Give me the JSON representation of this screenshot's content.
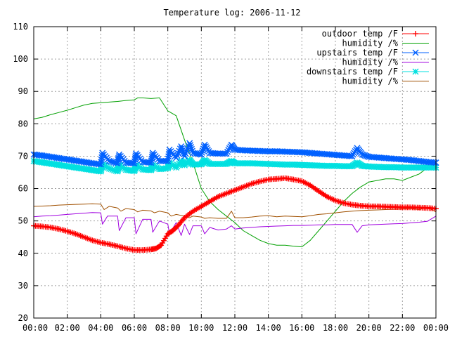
{
  "chart_data": {
    "type": "line",
    "title": "Temperature log: 2006-11-12",
    "xlabel": "",
    "ylabel": "",
    "xlim": [
      0,
      24
    ],
    "ylim": [
      20,
      110
    ],
    "grid": true,
    "legend_position": "top-right",
    "x_ticks": [
      "00:00",
      "02:00",
      "04:00",
      "06:00",
      "08:00",
      "10:00",
      "12:00",
      "14:00",
      "16:00",
      "18:00",
      "20:00",
      "22:00",
      "00:00"
    ],
    "y_ticks": [
      "20",
      "30",
      "40",
      "50",
      "60",
      "70",
      "80",
      "90",
      "100",
      "110"
    ],
    "series": [
      {
        "name": "outdoor temp /F",
        "color": "#ff0000",
        "marker": "plus",
        "x": [
          0,
          0.5,
          1,
          1.5,
          2,
          2.5,
          3,
          3.5,
          4,
          4.5,
          5,
          5.5,
          6,
          6.5,
          7,
          7.3,
          7.6,
          8,
          8.3,
          8.6,
          9,
          9.5,
          10,
          10.5,
          11,
          11.5,
          12,
          12.5,
          13,
          13.5,
          14,
          14.5,
          15,
          15.5,
          16,
          16.5,
          17,
          17.5,
          18,
          18.5,
          19,
          19.5,
          20,
          20.5,
          21,
          21.5,
          22,
          22.5,
          23,
          23.5,
          24
        ],
        "y": [
          48.5,
          48.3,
          48,
          47.5,
          46.8,
          46,
          45,
          44,
          43.3,
          42.8,
          42.2,
          41.5,
          41,
          41,
          41.2,
          41.5,
          42.5,
          46,
          47,
          48.5,
          51,
          53,
          54.5,
          56,
          57.5,
          58.5,
          59.5,
          60.5,
          61.5,
          62.2,
          62.8,
          63,
          63.2,
          62.8,
          62.3,
          61,
          59.2,
          57.5,
          56.3,
          55.5,
          55,
          54.7,
          54.5,
          54.5,
          54.4,
          54.3,
          54.2,
          54.2,
          54.1,
          54,
          53.8
        ]
      },
      {
        "name": "humidity /%",
        "color": "#00a000",
        "marker": "none",
        "x": [
          0,
          0.5,
          1,
          1.5,
          2,
          2.5,
          3,
          3.5,
          4,
          4.5,
          5,
          5.5,
          6,
          6.2,
          6.5,
          7,
          7.5,
          8,
          8.5,
          9,
          9.5,
          10,
          10.5,
          11,
          11.5,
          12,
          12.5,
          13,
          13.5,
          14,
          14.5,
          15,
          15.5,
          16,
          16.5,
          17,
          17.5,
          18,
          18.5,
          19,
          19.5,
          20,
          20.5,
          21,
          21.5,
          22,
          22.5,
          23,
          23.5,
          24
        ],
        "y": [
          81.5,
          82,
          82.8,
          83.5,
          84.2,
          85,
          85.8,
          86.3,
          86.5,
          86.7,
          86.9,
          87.2,
          87.4,
          88,
          88,
          87.8,
          88,
          84,
          82.5,
          75,
          68,
          60,
          56,
          53.5,
          51.5,
          49.5,
          47,
          45.5,
          44,
          43,
          42.5,
          42.5,
          42.2,
          42,
          44,
          47,
          50,
          53,
          56,
          58.5,
          60.5,
          62,
          62.5,
          63,
          63,
          62.5,
          63.5,
          64.5,
          66.5,
          67
        ]
      },
      {
        "name": "upstairs temp /F",
        "color": "#0060ff",
        "marker": "cross",
        "x": [
          0,
          0.5,
          1,
          1.5,
          2,
          2.5,
          3,
          3.5,
          4,
          4.1,
          4.5,
          5,
          5.1,
          5.5,
          6,
          6.1,
          6.5,
          7,
          7.1,
          7.5,
          8,
          8.1,
          8.5,
          8.8,
          9,
          9.3,
          9.5,
          10,
          10.2,
          10.5,
          11,
          11.5,
          11.8,
          12,
          12.5,
          13,
          13.5,
          14,
          14.5,
          15,
          15.5,
          16,
          16.5,
          17,
          17.5,
          18,
          18.5,
          19,
          19.3,
          19.6,
          20,
          20.5,
          21,
          21.5,
          22,
          22.5,
          23,
          23.5,
          24
        ],
        "y": [
          70.5,
          70.2,
          69.8,
          69.4,
          69,
          68.6,
          68.2,
          67.8,
          67.5,
          71,
          68.5,
          67.8,
          70.5,
          68,
          67.8,
          70.8,
          68.2,
          68,
          71,
          68.5,
          68.5,
          72,
          69.5,
          73,
          70,
          74,
          71,
          70.5,
          73.5,
          71,
          70.8,
          70.8,
          73.5,
          72,
          71.8,
          71.7,
          71.6,
          71.5,
          71.5,
          71.4,
          71.3,
          71.2,
          71,
          70.8,
          70.6,
          70.4,
          70.2,
          70,
          72.5,
          70.5,
          69.8,
          69.6,
          69.4,
          69.2,
          69,
          68.8,
          68.5,
          68.2,
          68
        ]
      },
      {
        "name": "humidity /%",
        "color": "#a000e0",
        "marker": "none",
        "x": [
          0,
          0.5,
          1,
          1.5,
          2,
          2.5,
          3,
          3.5,
          4,
          4.1,
          4.4,
          5,
          5.1,
          5.5,
          6,
          6.1,
          6.5,
          7,
          7.1,
          7.5,
          8,
          8.1,
          8.5,
          8.8,
          9,
          9.3,
          9.5,
          10,
          10.2,
          10.5,
          11,
          11.5,
          11.8,
          12,
          12.5,
          13,
          13.5,
          14,
          14.5,
          15,
          15.5,
          16,
          16.5,
          17,
          17.5,
          18,
          18.5,
          19,
          19.3,
          19.6,
          20,
          20.5,
          21,
          21.5,
          22,
          22.5,
          23,
          23.5,
          24
        ],
        "y": [
          51.3,
          51.5,
          51.6,
          51.8,
          52,
          52.2,
          52.4,
          52.6,
          52.5,
          49,
          51.5,
          51.5,
          47,
          51,
          51,
          46,
          50.5,
          50.5,
          46.5,
          50,
          49,
          46,
          49.5,
          45.5,
          49,
          45.8,
          48.5,
          48.5,
          46,
          48,
          47.2,
          47.5,
          48.5,
          47.5,
          47.8,
          48,
          48.2,
          48.3,
          48.4,
          48.5,
          48.6,
          48.6,
          48.7,
          48.8,
          48.8,
          48.9,
          48.9,
          48.9,
          46.5,
          48.5,
          48.8,
          48.9,
          49,
          49.1,
          49.2,
          49.4,
          49.6,
          49.9,
          51.5
        ]
      },
      {
        "name": "downstairs temp /F",
        "color": "#00e0e0",
        "marker": "star",
        "x": [
          0,
          0.5,
          1,
          1.5,
          2,
          2.5,
          3,
          3.5,
          4,
          4.1,
          4.5,
          5,
          5.1,
          5.5,
          6,
          6.1,
          6.5,
          7,
          7.1,
          7.5,
          8,
          8.1,
          8.5,
          8.8,
          9,
          9.3,
          9.5,
          10,
          10.2,
          10.5,
          11,
          11.5,
          11.8,
          12,
          12.5,
          13,
          13.5,
          14,
          14.5,
          15,
          15.5,
          16,
          16.5,
          17,
          17.5,
          18,
          18.5,
          19,
          19.3,
          19.6,
          20,
          20.5,
          21,
          21.5,
          22,
          22.5,
          23,
          23.5,
          24
        ],
        "y": [
          68.5,
          68.1,
          67.7,
          67.3,
          66.9,
          66.5,
          66.1,
          65.7,
          65.3,
          67.5,
          66.2,
          65.3,
          67.3,
          65.8,
          65.4,
          67.3,
          65.9,
          65.7,
          67.3,
          66,
          66.3,
          68,
          66.5,
          68.5,
          67.2,
          68.8,
          67.4,
          67.5,
          68.8,
          67.6,
          67.6,
          67.6,
          68.5,
          67.8,
          67.8,
          67.8,
          67.7,
          67.6,
          67.5,
          67.4,
          67.4,
          67.3,
          67.2,
          67.1,
          67,
          67,
          66.9,
          66.9,
          68,
          67,
          66.8,
          66.7,
          66.6,
          66.6,
          66.5,
          66.5,
          66.5,
          66.5,
          66.5
        ]
      },
      {
        "name": "humidity /%",
        "color": "#a05000",
        "marker": "none",
        "x": [
          0,
          0.5,
          1,
          1.5,
          2,
          2.5,
          3,
          3.5,
          4,
          4.2,
          4.5,
          5,
          5.2,
          5.5,
          6,
          6.2,
          6.5,
          7,
          7.2,
          7.5,
          8,
          8.2,
          8.5,
          9,
          9.3,
          9.5,
          10,
          10.2,
          10.5,
          11,
          11.5,
          11.8,
          12,
          12.5,
          13,
          13.5,
          14,
          14.5,
          15,
          15.5,
          16,
          16.5,
          17,
          17.5,
          18,
          18.5,
          19,
          19.5,
          20,
          20.5,
          21,
          21.5,
          22,
          22.5,
          23,
          23.5,
          24
        ],
        "y": [
          54.5,
          54.6,
          54.7,
          54.9,
          55,
          55.1,
          55.2,
          55.3,
          55.2,
          53.5,
          54.5,
          54,
          53,
          53.8,
          53.5,
          52.8,
          53.3,
          53.1,
          52.5,
          53,
          52.5,
          51.5,
          52,
          51.5,
          51,
          51.5,
          51.2,
          50.8,
          51,
          50.8,
          50.8,
          53,
          51,
          51,
          51.2,
          51.5,
          51.6,
          51.3,
          51.5,
          51.4,
          51.3,
          51.6,
          52,
          52.2,
          52.5,
          52.8,
          53,
          53.2,
          53.3,
          53.4,
          53.5,
          53.6,
          53.7,
          53.8,
          53.5,
          54.2,
          52.8
        ]
      }
    ]
  }
}
